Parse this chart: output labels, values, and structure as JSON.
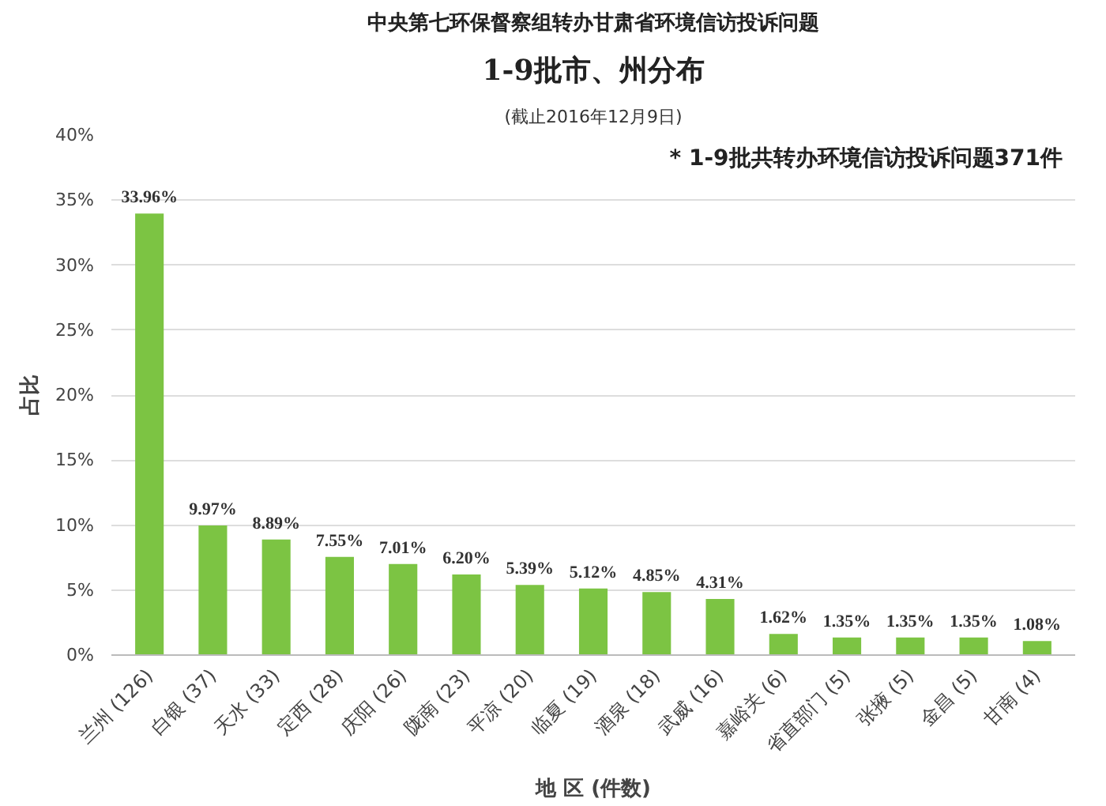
{
  "chart_data": {
    "type": "bar",
    "title": "中央第七环保督察组转办甘肃省环境信访投诉问题",
    "subtitle": "1-9批市、州分布",
    "annotations": [
      "(截止2016年12月9日)",
      "* 1-9批共转办环境信访投诉问题371件"
    ],
    "xlabel": "地 区 (件数)",
    "ylabel": "占比",
    "categories": [
      "兰州 (126)",
      "白银 (37)",
      "天水 (33)",
      "定西 (28)",
      "庆阳 (26)",
      "陇南 (23)",
      "平凉 (20)",
      "临夏 (19)",
      "酒泉 (18)",
      "武威 (16)",
      "嘉峪关 (6)",
      "省直部门 (5)",
      "张掖 (5)",
      "金昌 (5)",
      "甘南 (4)"
    ],
    "values": [
      33.96,
      9.97,
      8.89,
      7.55,
      7.01,
      6.2,
      5.39,
      5.12,
      4.85,
      4.31,
      1.62,
      1.35,
      1.35,
      1.35,
      1.08
    ],
    "value_labels": [
      "33.96%",
      "9.97%",
      "8.89%",
      "7.55%",
      "7.01%",
      "6.20%",
      "5.39%",
      "5.12%",
      "4.85%",
      "4.31%",
      "1.62%",
      "1.35%",
      "1.35%",
      "1.35%",
      "1.08%"
    ],
    "color": "#7cc443",
    "ylim": [
      0,
      40
    ],
    "yticks": [
      {
        "value": 0,
        "label": "0%"
      },
      {
        "value": 5,
        "label": "5%"
      },
      {
        "value": 10,
        "label": "10%"
      },
      {
        "value": 15,
        "label": "15%"
      },
      {
        "value": 20,
        "label": "20%"
      },
      {
        "value": 25,
        "label": "25%"
      },
      {
        "value": 30,
        "label": "30%"
      },
      {
        "value": 35,
        "label": "35%"
      },
      {
        "value": 40,
        "label": "40%"
      }
    ],
    "grid": "y"
  }
}
